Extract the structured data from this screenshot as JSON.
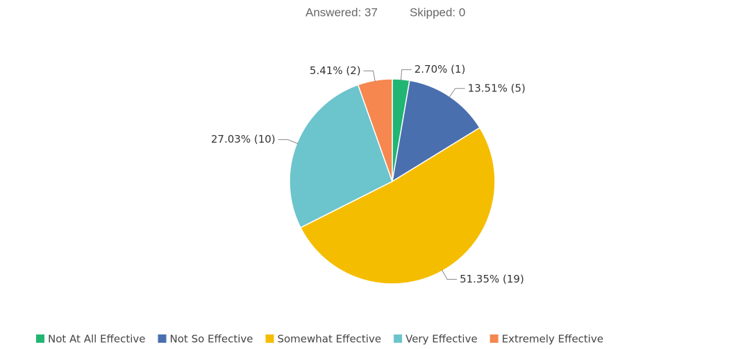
{
  "header": {
    "answered": "Answered: 37",
    "skipped": "Skipped: 0"
  },
  "chart_data": {
    "type": "pie",
    "categories": [
      "Not At All Effective",
      "Not So Effective",
      "Somewhat Effective",
      "Very Effective",
      "Extremely Effective"
    ],
    "values": [
      2.7,
      13.51,
      51.35,
      27.03,
      5.41
    ],
    "value_labels": [
      "2.70% (1)",
      "13.51% (5)",
      "51.35% (19)",
      "27.03% (10)",
      "5.41% (2)"
    ],
    "colors": [
      "#21b573",
      "#4a6fae",
      "#f5bd00",
      "#6cc4cc",
      "#f5874f"
    ]
  }
}
